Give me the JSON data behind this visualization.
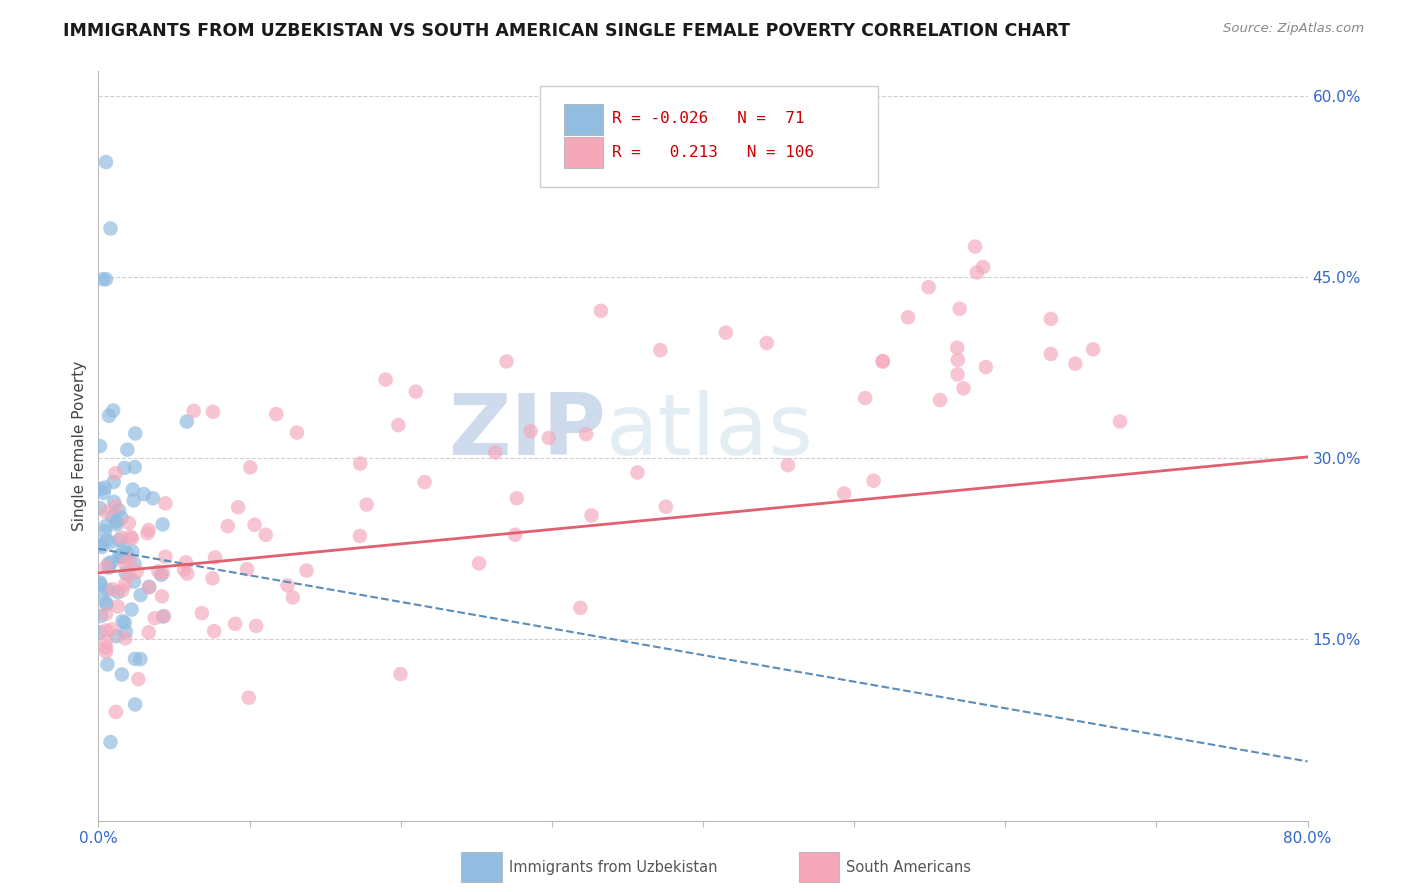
{
  "title": "IMMIGRANTS FROM UZBEKISTAN VS SOUTH AMERICAN SINGLE FEMALE POVERTY CORRELATION CHART",
  "source": "Source: ZipAtlas.com",
  "ylabel": "Single Female Poverty",
  "xlim": [
    0.0,
    0.8
  ],
  "ylim": [
    0.0,
    0.62
  ],
  "blue_color": "#92bce0",
  "pink_color": "#f4a7b9",
  "blue_line_color": "#5b8db8",
  "pink_line_color": "#e06070",
  "legend_R1": "-0.026",
  "legend_N1": "71",
  "legend_R2": "0.213",
  "legend_N2": "106",
  "legend_label1": "Immigrants from Uzbekistan",
  "legend_label2": "South Americans",
  "watermark_zip": "ZIP",
  "watermark_atlas": "atlas",
  "ytick_vals": [
    0.0,
    0.15,
    0.3,
    0.45,
    0.6
  ],
  "ytick_labels": [
    "",
    "15.0%",
    "30.0%",
    "45.0%",
    "60.0%"
  ],
  "grid_color": "#d0d0d0",
  "title_color": "#1a1a1a",
  "source_color": "#888888",
  "axis_color": "#bbbbbb"
}
